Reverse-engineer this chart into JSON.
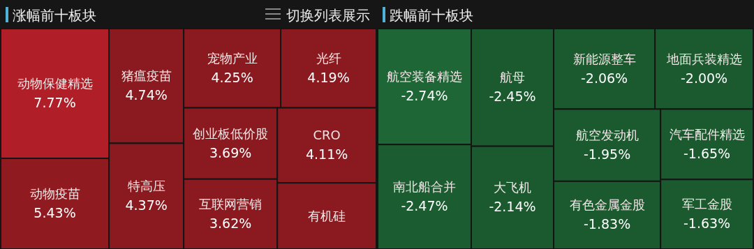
{
  "chart_data": [
    {
      "type": "other",
      "title": "涨幅前十板块",
      "annotations": [
        "切换列表展示"
      ],
      "categories": [
        "动物保健精选",
        "动物疫苗",
        "猪瘟疫苗",
        "特高压",
        "宠物产业",
        "光纤",
        "创业板低价股",
        "互联网营销",
        "CRO",
        "有机硅"
      ],
      "values": [
        7.77,
        5.43,
        4.74,
        4.37,
        4.25,
        4.19,
        3.69,
        3.62,
        4.11,
        null
      ],
      "value_labels": [
        "7.77%",
        "5.43%",
        "4.74%",
        "4.37%",
        "4.25%",
        "4.19%",
        "3.69%",
        "3.62%",
        "4.11%",
        null
      ],
      "colors": [
        "#b01f28",
        "#8f1a20",
        "#8a1a1f",
        "#8a1a1f",
        "#8a1a1f",
        "#8a1a1f",
        "#8a1a1f",
        "#8a1a1f",
        "#8a1a1f",
        "#8a1a1f"
      ]
    },
    {
      "type": "other",
      "title": "跌幅前十板块",
      "categories": [
        "航空装备精选",
        "南北船合并",
        "航母",
        "大飞机",
        "新能源整车",
        "地面兵装精选",
        "航空发动机",
        "有色金属金股",
        "汽车配件精选",
        "军工金股"
      ],
      "values": [
        -2.74,
        -2.47,
        -2.45,
        -2.14,
        -2.06,
        -2.0,
        -1.95,
        -1.83,
        -1.65,
        -1.63
      ],
      "value_labels": [
        "-2.74%",
        "-2.47%",
        "-2.45%",
        "-2.14%",
        "-2.06%",
        "-2.00%",
        "-1.95%",
        "-1.83%",
        "-1.65%",
        "-1.63%"
      ],
      "colors": [
        "#1f6636",
        "#1c5c31",
        "#1b5a2f",
        "#1b5a2f",
        "#1b5a2f",
        "#1b5a2f",
        "#1b5a2f",
        "#1b5a2f",
        "#1b5a2f",
        "#1b5a2f"
      ]
    }
  ]
}
